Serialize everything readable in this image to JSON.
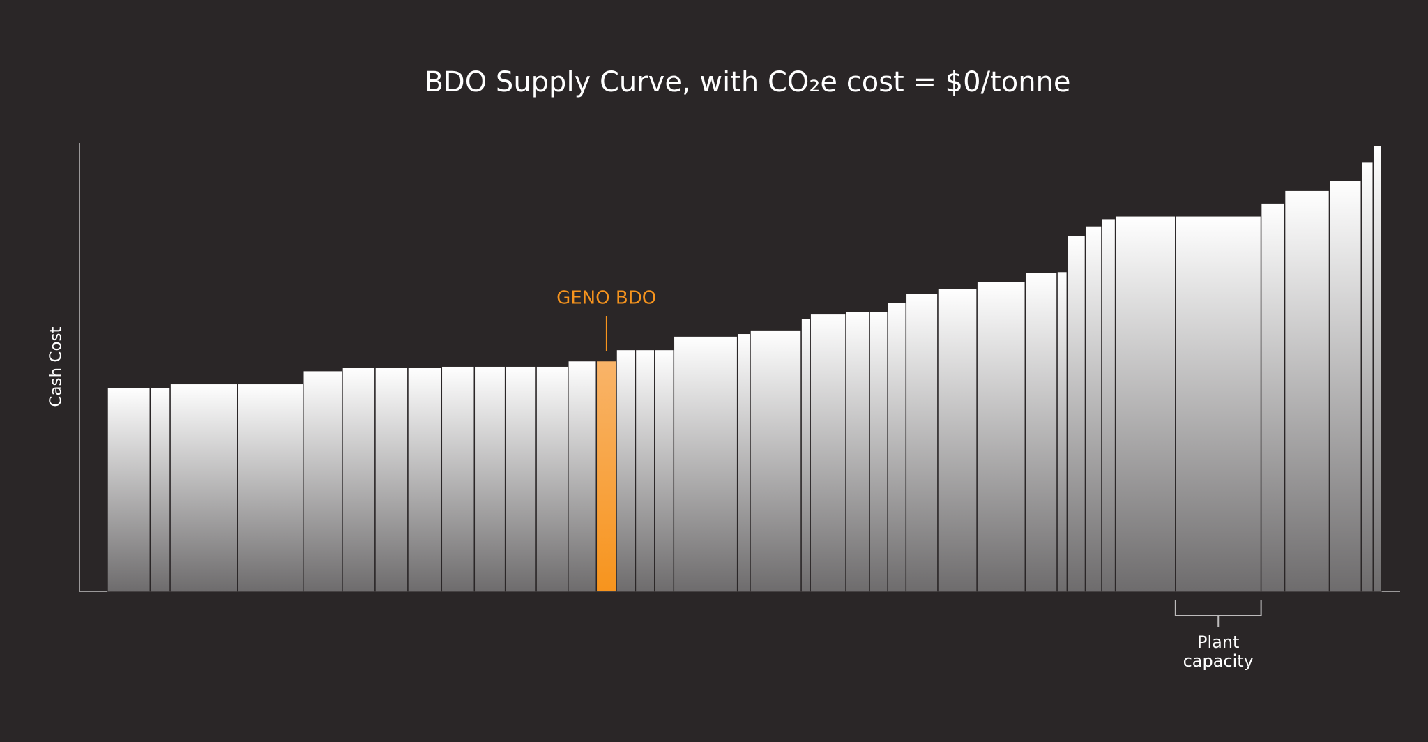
{
  "chart_data": {
    "type": "supply-curve",
    "title": "BDO Supply Curve, with CO₂e cost = $0/tonne",
    "y_label": "Cash Cost",
    "capacities": [
      47,
      22,
      74,
      72,
      43,
      36,
      36,
      37,
      36,
      34,
      34,
      35,
      31,
      22,
      21,
      21,
      21,
      70,
      14,
      56,
      10,
      39,
      26,
      20,
      20,
      35,
      43,
      53,
      35,
      11,
      20,
      18,
      15,
      66,
      94,
      26,
      49,
      35,
      13,
      9
    ],
    "values": [
      45.5,
      45.5,
      46.3,
      46.3,
      49.2,
      50.0,
      50.0,
      50.0,
      50.2,
      50.2,
      50.2,
      50.2,
      51.4,
      51.4,
      53.9,
      53.9,
      53.9,
      56.9,
      57.5,
      58.3,
      60.8,
      62.0,
      62.4,
      62.4,
      64.4,
      66.5,
      67.5,
      69.1,
      71.1,
      71.3,
      79.3,
      81.5,
      83.1,
      83.7,
      83.7,
      86.6,
      89.4,
      91.7,
      95.7,
      99.4
    ],
    "xlim": [
      0,
      1399
    ],
    "ylim": [
      0,
      100
    ],
    "color": {
      "top": "#ffffff",
      "bottom": "#6e6c6d"
    },
    "highlight": {
      "index": 13,
      "top": "#f9b469",
      "bottom": "#f7941d"
    },
    "annotations": [
      {
        "text": "GENO BDO",
        "index": 13,
        "color": "#f7941d"
      },
      {
        "text": "Plant capacity",
        "index": 34,
        "color": "#ffffff"
      }
    ]
  }
}
